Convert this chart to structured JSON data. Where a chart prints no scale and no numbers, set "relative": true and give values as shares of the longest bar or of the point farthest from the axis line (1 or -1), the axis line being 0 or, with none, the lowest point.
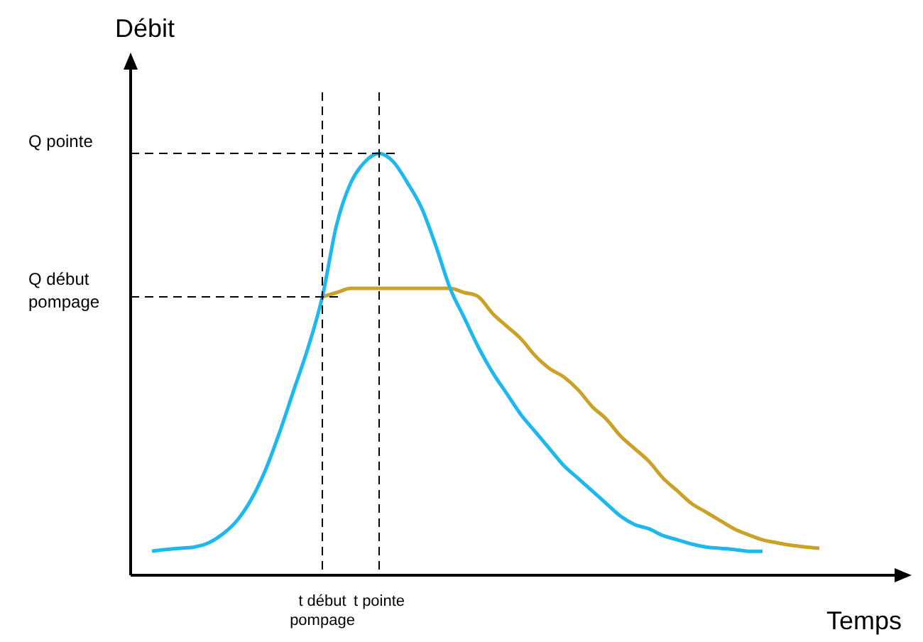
{
  "chart_data": {
    "type": "line",
    "relative": true,
    "xlabel": "Temps",
    "ylabel": "Débit",
    "categories": [
      null,
      null,
      null,
      null,
      null,
      null,
      null,
      null,
      null,
      null,
      null,
      null,
      "t début pompage",
      null,
      null,
      null,
      "t pointe",
      null,
      null,
      null,
      null,
      null,
      null,
      null,
      null,
      null,
      null,
      null,
      null,
      null,
      null,
      null,
      null,
      null,
      null,
      null,
      null,
      null,
      null,
      null,
      null,
      null,
      null,
      null,
      null,
      null,
      null,
      null
    ],
    "series": [
      {
        "color": "#1fb8ee",
        "values": [
          0.057,
          0.061,
          0.064,
          0.067,
          0.077,
          0.098,
          0.13,
          0.18,
          0.25,
          0.34,
          0.44,
          0.54,
          0.66,
          0.83,
          0.93,
          0.98,
          1,
          0.98,
          0.93,
          0.87,
          0.78,
          0.68,
          0.61,
          0.54,
          0.48,
          0.43,
          0.38,
          0.34,
          0.3,
          0.26,
          0.23,
          0.2,
          0.17,
          0.14,
          0.12,
          0.11,
          0.094,
          0.084,
          0.074,
          0.067,
          0.064,
          0.061,
          0.057,
          0.057,
          null,
          null,
          null,
          null
        ]
      },
      {
        "color": "#c9a227",
        "values": [
          null,
          null,
          null,
          null,
          null,
          null,
          null,
          null,
          null,
          null,
          null,
          null,
          0.66,
          0.67,
          0.68,
          0.68,
          0.68,
          0.68,
          0.68,
          0.68,
          0.68,
          0.68,
          0.67,
          0.66,
          0.62,
          0.59,
          0.56,
          0.52,
          0.49,
          0.47,
          0.44,
          0.4,
          0.37,
          0.33,
          0.3,
          0.27,
          0.23,
          0.2,
          0.17,
          0.15,
          0.13,
          0.11,
          0.096,
          0.084,
          0.077,
          0.071,
          0.067,
          0.064
        ]
      }
    ],
    "ref_lines": [
      {
        "axis": "y",
        "value": 1,
        "label": "Q pointe",
        "line_style": "dashed"
      },
      {
        "axis": "y",
        "value": 0.66,
        "label": "Q début pompage",
        "line_style": "dashed"
      },
      {
        "axis": "x",
        "value": "t début pompage",
        "line_style": "dashed"
      },
      {
        "axis": "x",
        "value": "t pointe",
        "line_style": "dashed"
      }
    ],
    "legend": false,
    "marker": "none",
    "line_style": "solid"
  }
}
